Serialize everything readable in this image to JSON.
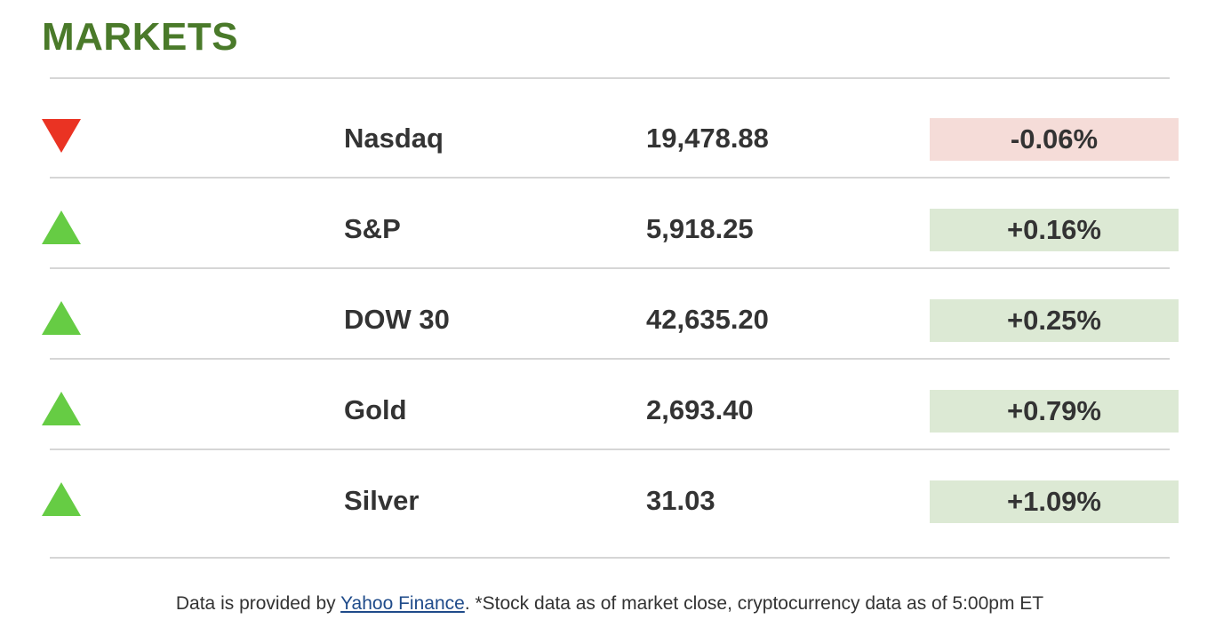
{
  "header": {
    "title": "MARKETS"
  },
  "colors": {
    "title": "#4a7a2a",
    "down_arrow": "#ea3323",
    "up_arrow": "#66cc44",
    "negative_bg": "#f5dcd8",
    "positive_bg": "#dce9d4",
    "link": "#1f4b8a"
  },
  "markets": [
    {
      "direction": "down",
      "icon": "down-triangle-icon",
      "name": "Nasdaq",
      "value": "19,478.88",
      "change": "-0.06%"
    },
    {
      "direction": "up",
      "icon": "up-triangle-icon",
      "name": "S&P",
      "value": "5,918.25",
      "change": "+0.16%"
    },
    {
      "direction": "up",
      "icon": "up-triangle-icon",
      "name": "DOW 30",
      "value": "42,635.20",
      "change": "+0.25%"
    },
    {
      "direction": "up",
      "icon": "up-triangle-icon",
      "name": "Gold",
      "value": "2,693.40",
      "change": "+0.79%"
    },
    {
      "direction": "up",
      "icon": "up-triangle-icon",
      "name": "Silver",
      "value": "31.03",
      "change": "+1.09%"
    }
  ],
  "footer": {
    "prefix": "Data is provided by ",
    "link_text": "Yahoo Finance",
    "suffix": ". *Stock data as of market close, cryptocurrency data as of 5:00pm ET"
  }
}
